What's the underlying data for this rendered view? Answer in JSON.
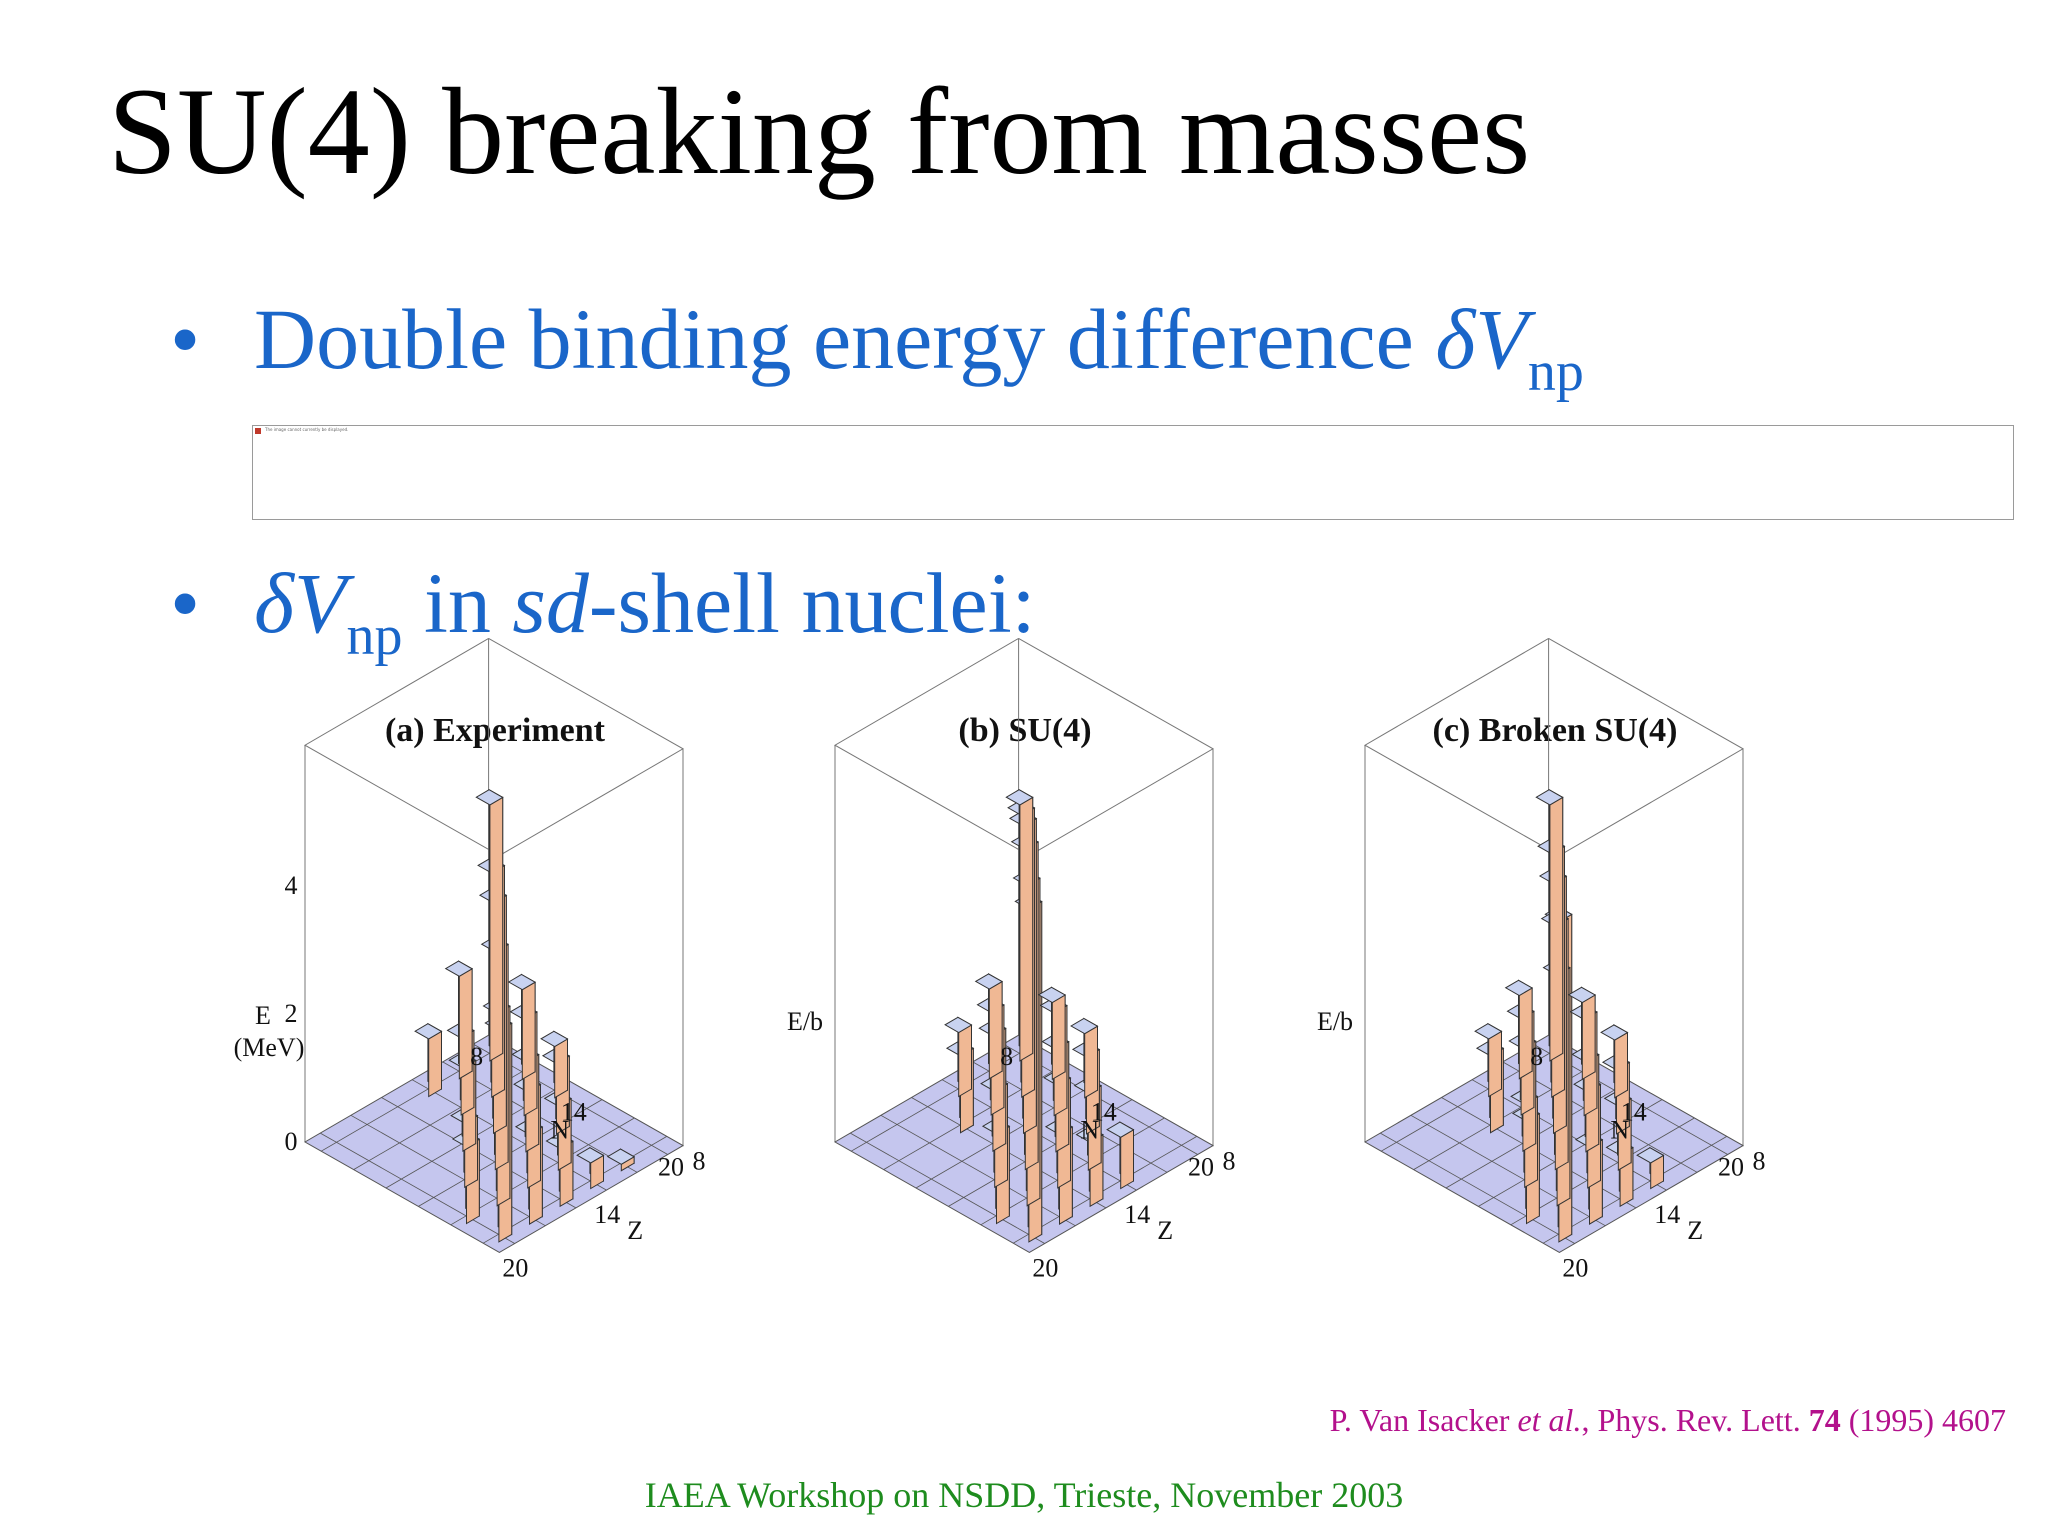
{
  "slide": {
    "title": "SU(4) breaking from masses",
    "bullet_dot": "•",
    "bullets": [
      {
        "pre": "Double binding energy difference ",
        "sym": "δV",
        "sub": "np",
        "post": ""
      },
      {
        "pre": "",
        "sym": "δV",
        "sub": "np",
        "mid": " in ",
        "em": "sd",
        "post": "-shell nuclei:"
      }
    ],
    "broken_image_alt": "The image cannot currently be displayed.",
    "citation": {
      "authors": "P. Van Isacker ",
      "etal": "et al.",
      "journal": ", Phys. Rev. Lett. ",
      "volume": "74",
      "rest": " (1995) 4607"
    },
    "footer": "IAEA Workshop on NSDD, Trieste, November 2003"
  },
  "colors": {
    "title": "#000000",
    "bullet": "#1a66c9",
    "citation": "#b3118c",
    "footer": "#1e8c1e",
    "bar_front": "#c89ac8",
    "bar_side": "#f0b894",
    "bar_top": "#c8d2f0",
    "floor": "#c5c6ee"
  },
  "chart_data": [
    {
      "type": "bar3d",
      "title": "(a) Experiment",
      "zlabel": "E",
      "zunit": "(MeV)",
      "zticks": [
        "0",
        "2",
        "4"
      ],
      "xlabel": "N",
      "xticks": [
        "8",
        "14",
        "20"
      ],
      "ylabel": "Z",
      "yticks": [
        "8",
        "14",
        "20"
      ],
      "points": [
        {
          "n": 9,
          "z": 9,
          "v": 4.0
        },
        {
          "n": 9,
          "z": 11,
          "v": 1.6
        },
        {
          "n": 9,
          "z": 13,
          "v": 0.9
        },
        {
          "n": 11,
          "z": 11,
          "v": 3.5
        },
        {
          "n": 11,
          "z": 9,
          "v": 1.4
        },
        {
          "n": 11,
          "z": 13,
          "v": 1.2
        },
        {
          "n": 13,
          "z": 13,
          "v": 3.6
        },
        {
          "n": 13,
          "z": 11,
          "v": 1.5
        },
        {
          "n": 13,
          "z": 15,
          "v": 1.3
        },
        {
          "n": 13,
          "z": 9,
          "v": 0.8
        },
        {
          "n": 15,
          "z": 15,
          "v": 3.4
        },
        {
          "n": 15,
          "z": 13,
          "v": 1.4
        },
        {
          "n": 15,
          "z": 17,
          "v": 1.0
        },
        {
          "n": 15,
          "z": 11,
          "v": 1.1
        },
        {
          "n": 17,
          "z": 17,
          "v": 3.0
        },
        {
          "n": 17,
          "z": 15,
          "v": 1.5
        },
        {
          "n": 17,
          "z": 13,
          "v": 1.0
        },
        {
          "n": 17,
          "z": 19,
          "v": 1.2
        },
        {
          "n": 19,
          "z": 19,
          "v": 3.3
        },
        {
          "n": 19,
          "z": 17,
          "v": 1.4
        },
        {
          "n": 19,
          "z": 15,
          "v": 0.9
        },
        {
          "n": 19,
          "z": 13,
          "v": 0.4
        },
        {
          "n": 19,
          "z": 11,
          "v": 0.1
        }
      ]
    },
    {
      "type": "bar3d",
      "title": "(b) SU(4)",
      "zlabel": "E/b",
      "zunit": "",
      "zticks": [],
      "xlabel": "N",
      "xticks": [
        "8",
        "14",
        "20"
      ],
      "ylabel": "Z",
      "yticks": [
        "8",
        "14",
        "20"
      ],
      "points": [
        {
          "n": 9,
          "z": 9,
          "v": 4.0
        },
        {
          "n": 9,
          "z": 11,
          "v": 1.4
        },
        {
          "n": 9,
          "z": 13,
          "v": 1.0
        },
        {
          "n": 11,
          "z": 11,
          "v": 4.4
        },
        {
          "n": 11,
          "z": 9,
          "v": 1.2
        },
        {
          "n": 11,
          "z": 13,
          "v": 1.6
        },
        {
          "n": 11,
          "z": 15,
          "v": 1.2
        },
        {
          "n": 13,
          "z": 13,
          "v": 4.8
        },
        {
          "n": 13,
          "z": 11,
          "v": 1.6
        },
        {
          "n": 13,
          "z": 15,
          "v": 1.8
        },
        {
          "n": 13,
          "z": 9,
          "v": 1.0
        },
        {
          "n": 15,
          "z": 15,
          "v": 5.0
        },
        {
          "n": 15,
          "z": 13,
          "v": 1.6
        },
        {
          "n": 15,
          "z": 17,
          "v": 1.5
        },
        {
          "n": 15,
          "z": 11,
          "v": 1.2
        },
        {
          "n": 17,
          "z": 17,
          "v": 5.0
        },
        {
          "n": 17,
          "z": 15,
          "v": 1.6
        },
        {
          "n": 17,
          "z": 13,
          "v": 1.2
        },
        {
          "n": 17,
          "z": 19,
          "v": 1.4
        },
        {
          "n": 19,
          "z": 19,
          "v": 5.2
        },
        {
          "n": 19,
          "z": 17,
          "v": 1.4
        },
        {
          "n": 19,
          "z": 15,
          "v": 1.0
        },
        {
          "n": 19,
          "z": 13,
          "v": 0.8
        }
      ]
    },
    {
      "type": "bar3d",
      "title": "(c) Broken SU(4)",
      "zlabel": "E/b",
      "zunit": "",
      "zticks": [],
      "xlabel": "N",
      "xticks": [
        "8",
        "14",
        "20"
      ],
      "ylabel": "Z",
      "yticks": [
        "8",
        "14",
        "20"
      ],
      "points": [
        {
          "n": 9,
          "z": 9,
          "v": 4.0
        },
        {
          "n": 9,
          "z": 11,
          "v": 1.3
        },
        {
          "n": 9,
          "z": 13,
          "v": 0.9
        },
        {
          "n": 11,
          "z": 11,
          "v": 3.8
        },
        {
          "n": 11,
          "z": 9,
          "v": 1.2
        },
        {
          "n": 11,
          "z": 13,
          "v": 1.5
        },
        {
          "n": 11,
          "z": 15,
          "v": 1.2
        },
        {
          "n": 13,
          "z": 13,
          "v": 3.9
        },
        {
          "n": 13,
          "z": 11,
          "v": 1.5
        },
        {
          "n": 13,
          "z": 15,
          "v": 1.6
        },
        {
          "n": 13,
          "z": 9,
          "v": 0.9
        },
        {
          "n": 15,
          "z": 15,
          "v": 3.8
        },
        {
          "n": 15,
          "z": 13,
          "v": 1.4
        },
        {
          "n": 15,
          "z": 17,
          "v": 1.3
        },
        {
          "n": 15,
          "z": 11,
          "v": 1.0
        },
        {
          "n": 17,
          "z": 17,
          "v": 3.6
        },
        {
          "n": 17,
          "z": 15,
          "v": 1.5
        },
        {
          "n": 17,
          "z": 13,
          "v": 1.0
        },
        {
          "n": 17,
          "z": 19,
          "v": 1.6
        },
        {
          "n": 19,
          "z": 19,
          "v": 5.0
        },
        {
          "n": 19,
          "z": 17,
          "v": 1.2
        },
        {
          "n": 19,
          "z": 15,
          "v": 0.8
        },
        {
          "n": 19,
          "z": 13,
          "v": 0.4
        }
      ]
    }
  ]
}
